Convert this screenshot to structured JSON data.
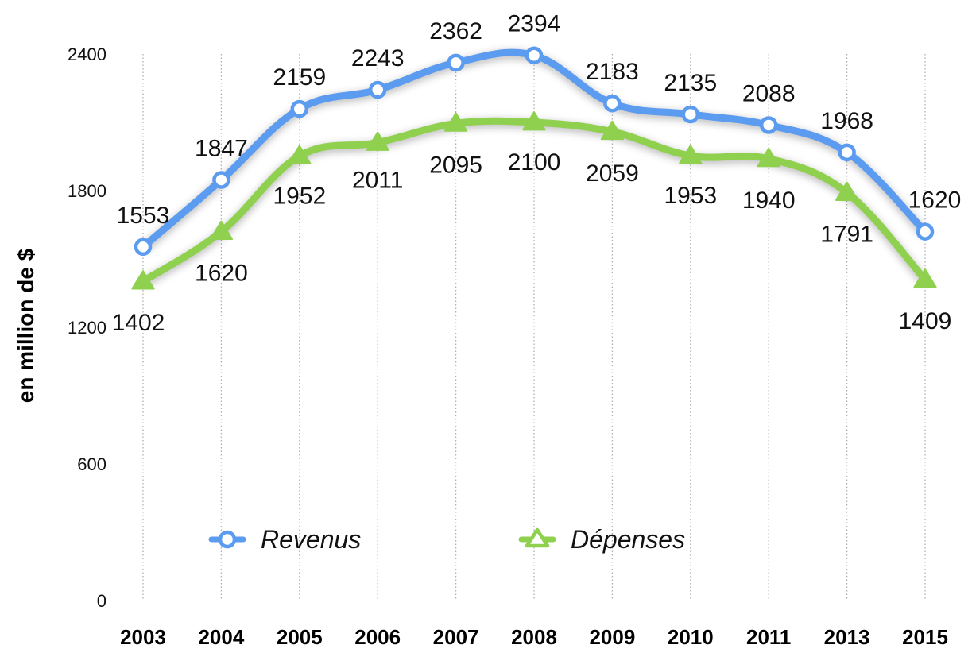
{
  "chart_data": {
    "type": "line",
    "categories": [
      "2003",
      "2004",
      "2005",
      "2006",
      "2007",
      "2008",
      "2009",
      "2010",
      "2011",
      "2013",
      "2015"
    ],
    "series": [
      {
        "name": "Revenus",
        "values": [
          1553,
          1847,
          2159,
          2243,
          2362,
          2394,
          2183,
          2135,
          2088,
          1968,
          1620
        ],
        "color": "#5B9BF0",
        "marker": "circle"
      },
      {
        "name": "Dépenses",
        "values": [
          1402,
          1620,
          1952,
          2011,
          2095,
          2100,
          2059,
          1953,
          1940,
          1791,
          1409
        ],
        "color": "#8FD14F",
        "marker": "triangle"
      }
    ],
    "ylabel": "en million de $",
    "xlabel": "",
    "yticks": [
      "0",
      "600",
      "1200",
      "1800",
      "2400"
    ],
    "ylim": [
      0,
      2400
    ],
    "grid": "vertical dotted",
    "legend_position": "bottom-inside"
  }
}
